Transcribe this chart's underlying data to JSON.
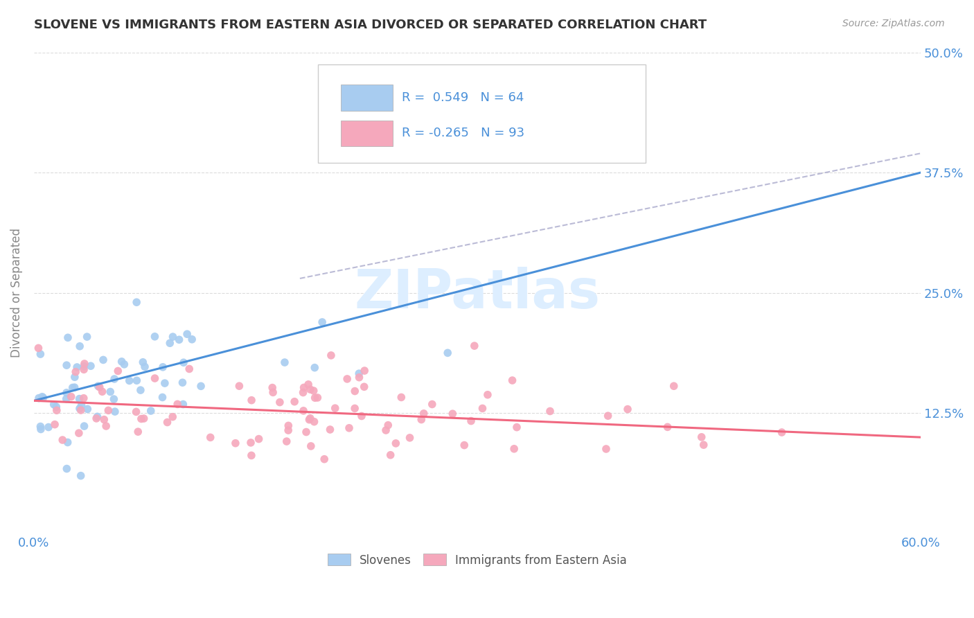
{
  "title": "SLOVENE VS IMMIGRANTS FROM EASTERN ASIA DIVORCED OR SEPARATED CORRELATION CHART",
  "source_text": "Source: ZipAtlas.com",
  "ylabel": "Divorced or Separated",
  "xlim": [
    0.0,
    0.6
  ],
  "ylim": [
    0.0,
    0.5
  ],
  "yticks": [
    0.0,
    0.125,
    0.25,
    0.375,
    0.5
  ],
  "xticks": [
    0.0,
    0.1,
    0.2,
    0.3,
    0.4,
    0.5,
    0.6
  ],
  "blue_R": 0.549,
  "blue_N": 64,
  "pink_R": -0.265,
  "pink_N": 93,
  "blue_color": "#A8CCF0",
  "pink_color": "#F5A8BC",
  "blue_line_color": "#4A90D9",
  "pink_line_color": "#F06880",
  "dash_line_color": "#AAAACC",
  "grid_color": "#CCCCCC",
  "title_color": "#333333",
  "tick_color": "#4A90D9",
  "watermark_color": "#DDEEFF",
  "watermark_text": "ZIPatlas",
  "legend_entries": [
    "Slovenes",
    "Immigrants from Eastern Asia"
  ],
  "blue_trend_x0": 0.0,
  "blue_trend_y0": 0.138,
  "blue_trend_x1": 0.6,
  "blue_trend_y1": 0.375,
  "pink_trend_x0": 0.0,
  "pink_trend_y0": 0.138,
  "pink_trend_x1": 0.6,
  "pink_trend_y1": 0.1,
  "dash_trend_x0": 0.18,
  "dash_trend_y0": 0.265,
  "dash_trend_x1": 0.6,
  "dash_trend_y1": 0.395
}
